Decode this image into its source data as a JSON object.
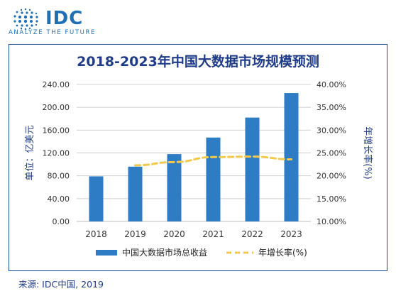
{
  "logo": {
    "name": "IDC",
    "tagline": "ANALYZE THE FUTURE",
    "color": "#1f6fb5"
  },
  "source": "来源: IDC中国, 2019",
  "chart_data": {
    "type": "bar",
    "title": "2018-2023年中国大数据市场规模预测",
    "categories": [
      "2018",
      "2019",
      "2020",
      "2021",
      "2022",
      "2023"
    ],
    "ylabel": "单位：亿美元",
    "y2label": "年增长率(%)",
    "ylim": [
      0,
      240
    ],
    "y2lim": [
      10,
      40
    ],
    "yticks": [
      "0.00",
      "40.00",
      "80.00",
      "120.00",
      "160.00",
      "200.00",
      "240.00"
    ],
    "y2ticks": [
      "10.00%",
      "15.00%",
      "20.00%",
      "25.00%",
      "30.00%",
      "35.00%",
      "40.00%"
    ],
    "series": [
      {
        "name": "中国大数据市场总收益",
        "type": "bar",
        "axis": "left",
        "color": "#2e7dc4",
        "values": [
          79,
          96,
          118,
          147,
          182,
          225
        ]
      },
      {
        "name": "年增长率(%)",
        "type": "line",
        "style": "dashed",
        "axis": "right",
        "color": "#f2c94c",
        "values": [
          null,
          22.3,
          23.0,
          24.1,
          24.2,
          23.6
        ]
      }
    ],
    "grid": true,
    "legend": "bottom"
  }
}
